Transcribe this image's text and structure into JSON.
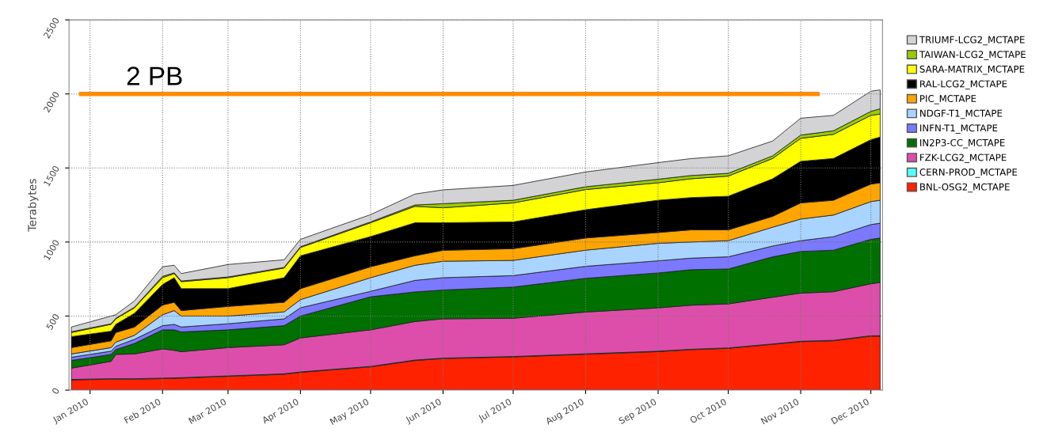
{
  "chart_data": {
    "type": "area",
    "stacked": true,
    "ylabel": "Terabytes",
    "x": [
      "2009-12-24",
      "2010-01-10",
      "2010-01-12",
      "2010-01-20",
      "2010-02-01",
      "2010-02-06",
      "2010-02-09",
      "2010-03-01",
      "2010-03-25",
      "2010-04-01",
      "2010-05-01",
      "2010-05-20",
      "2010-06-01",
      "2010-07-01",
      "2010-08-01",
      "2010-09-01",
      "2010-09-15",
      "2010-10-01",
      "2010-10-20",
      "2010-11-01",
      "2010-11-15",
      "2010-12-01",
      "2010-12-05"
    ],
    "series": [
      {
        "name": "BNL-OSG2_MCTAPE",
        "color": "#ff2200",
        "values": [
          69,
          74,
          74,
          74,
          78,
          80,
          81,
          93,
          107,
          120,
          157,
          200,
          213,
          224,
          242,
          260,
          273,
          282,
          309,
          327,
          333,
          364,
          364
        ]
      },
      {
        "name": "CERN-PROD_MCTAPE",
        "color": "#55ffff",
        "values": [
          3,
          3,
          3,
          3,
          3,
          3,
          3,
          3,
          3,
          3,
          3,
          3,
          3,
          3,
          3,
          3,
          3,
          3,
          3,
          3,
          3,
          3,
          3
        ]
      },
      {
        "name": "FZK-LCG2_MCTAPE",
        "color": "#dd4eaa",
        "values": [
          76,
          117,
          164,
          167,
          197,
          186,
          175,
          191,
          196,
          229,
          247,
          260,
          265,
          258,
          282,
          292,
          297,
          297,
          315,
          325,
          328,
          351,
          360
        ]
      },
      {
        "name": "IN2P3-CC_MCTAPE",
        "color": "#007000",
        "values": [
          52,
          47,
          33,
          71,
          129,
          138,
          134,
          120,
          129,
          148,
          223,
          200,
          195,
          211,
          228,
          236,
          240,
          236,
          273,
          281,
          281,
          300,
          300
        ]
      },
      {
        "name": "INFN-T1_MCTAPE",
        "color": "#7b79ff",
        "values": [
          22,
          22,
          22,
          28,
          28,
          37,
          33,
          41,
          46,
          56,
          37,
          78,
          83,
          77,
          81,
          82,
          78,
          82,
          73,
          73,
          91,
          100,
          100
        ]
      },
      {
        "name": "NDGF-T1_MCTAPE",
        "color": "#a8d4ff",
        "values": [
          22,
          24,
          28,
          27,
          74,
          93,
          74,
          52,
          47,
          55,
          92,
          102,
          111,
          103,
          109,
          118,
          109,
          109,
          127,
          146,
          146,
          155,
          155
        ]
      },
      {
        "name": "PIC_MCTAPE",
        "color": "#ffa500",
        "values": [
          43,
          46,
          65,
          56,
          65,
          56,
          37,
          65,
          65,
          74,
          74,
          64,
          74,
          79,
          82,
          73,
          82,
          73,
          73,
          109,
          100,
          118,
          118
        ]
      },
      {
        "name": "RAL-LCG2_MCTAPE",
        "color": "#000000",
        "values": [
          74,
          65,
          55,
          93,
          139,
          166,
          148,
          120,
          166,
          222,
          204,
          223,
          186,
          181,
          191,
          218,
          218,
          227,
          254,
          281,
          282,
          300,
          309
        ]
      },
      {
        "name": "SARA-MATRIX_MCTAPE",
        "color": "#ffff00",
        "values": [
          28,
          46,
          37,
          37,
          46,
          28,
          47,
          74,
          65,
          56,
          93,
          111,
          101,
          128,
          136,
          118,
          127,
          136,
          137,
          155,
          163,
          164,
          155
        ]
      },
      {
        "name": "TAIWAN-LCG2_MCTAPE",
        "color": "#99cc00",
        "values": [
          5,
          4,
          4,
          4,
          9,
          5,
          5,
          5,
          5,
          5,
          6,
          9,
          28,
          18,
          19,
          24,
          22,
          19,
          18,
          22,
          24,
          27,
          36
        ]
      },
      {
        "name": "TRIUMF-LCG2_MCTAPE",
        "color": "#d3d3d6",
        "values": [
          32,
          52,
          24,
          42,
          65,
          51,
          50,
          84,
          51,
          50,
          49,
          74,
          93,
          100,
          100,
          112,
          114,
          118,
          100,
          114,
          104,
          136,
          127
        ]
      }
    ],
    "xlim": [
      "2009-12-23",
      "2010-12-06"
    ],
    "xticks": [
      {
        "value": "2010-01-01",
        "label": "Jan 2010"
      },
      {
        "value": "2010-02-01",
        "label": "Feb 2010"
      },
      {
        "value": "2010-03-01",
        "label": "Mar 2010"
      },
      {
        "value": "2010-04-01",
        "label": "Apr 2010"
      },
      {
        "value": "2010-05-01",
        "label": "May 2010"
      },
      {
        "value": "2010-06-01",
        "label": "Jun 2010"
      },
      {
        "value": "2010-07-01",
        "label": "Jul 2010"
      },
      {
        "value": "2010-08-01",
        "label": "Aug 2010"
      },
      {
        "value": "2010-09-01",
        "label": "Sep 2010"
      },
      {
        "value": "2010-10-01",
        "label": "Oct 2010"
      },
      {
        "value": "2010-11-01",
        "label": "Nov 2010"
      },
      {
        "value": "2010-12-01",
        "label": "Dec 2010"
      }
    ],
    "ylim": [
      0,
      2500
    ],
    "yticks": [
      0,
      500,
      1000,
      1500,
      2000,
      2500
    ],
    "ref_lines": [
      {
        "axis": "y",
        "value": 2000,
        "label": "2 PB",
        "color": "#ff8c00"
      }
    ],
    "grid": true,
    "line_style": "dotted",
    "legend": "right"
  }
}
